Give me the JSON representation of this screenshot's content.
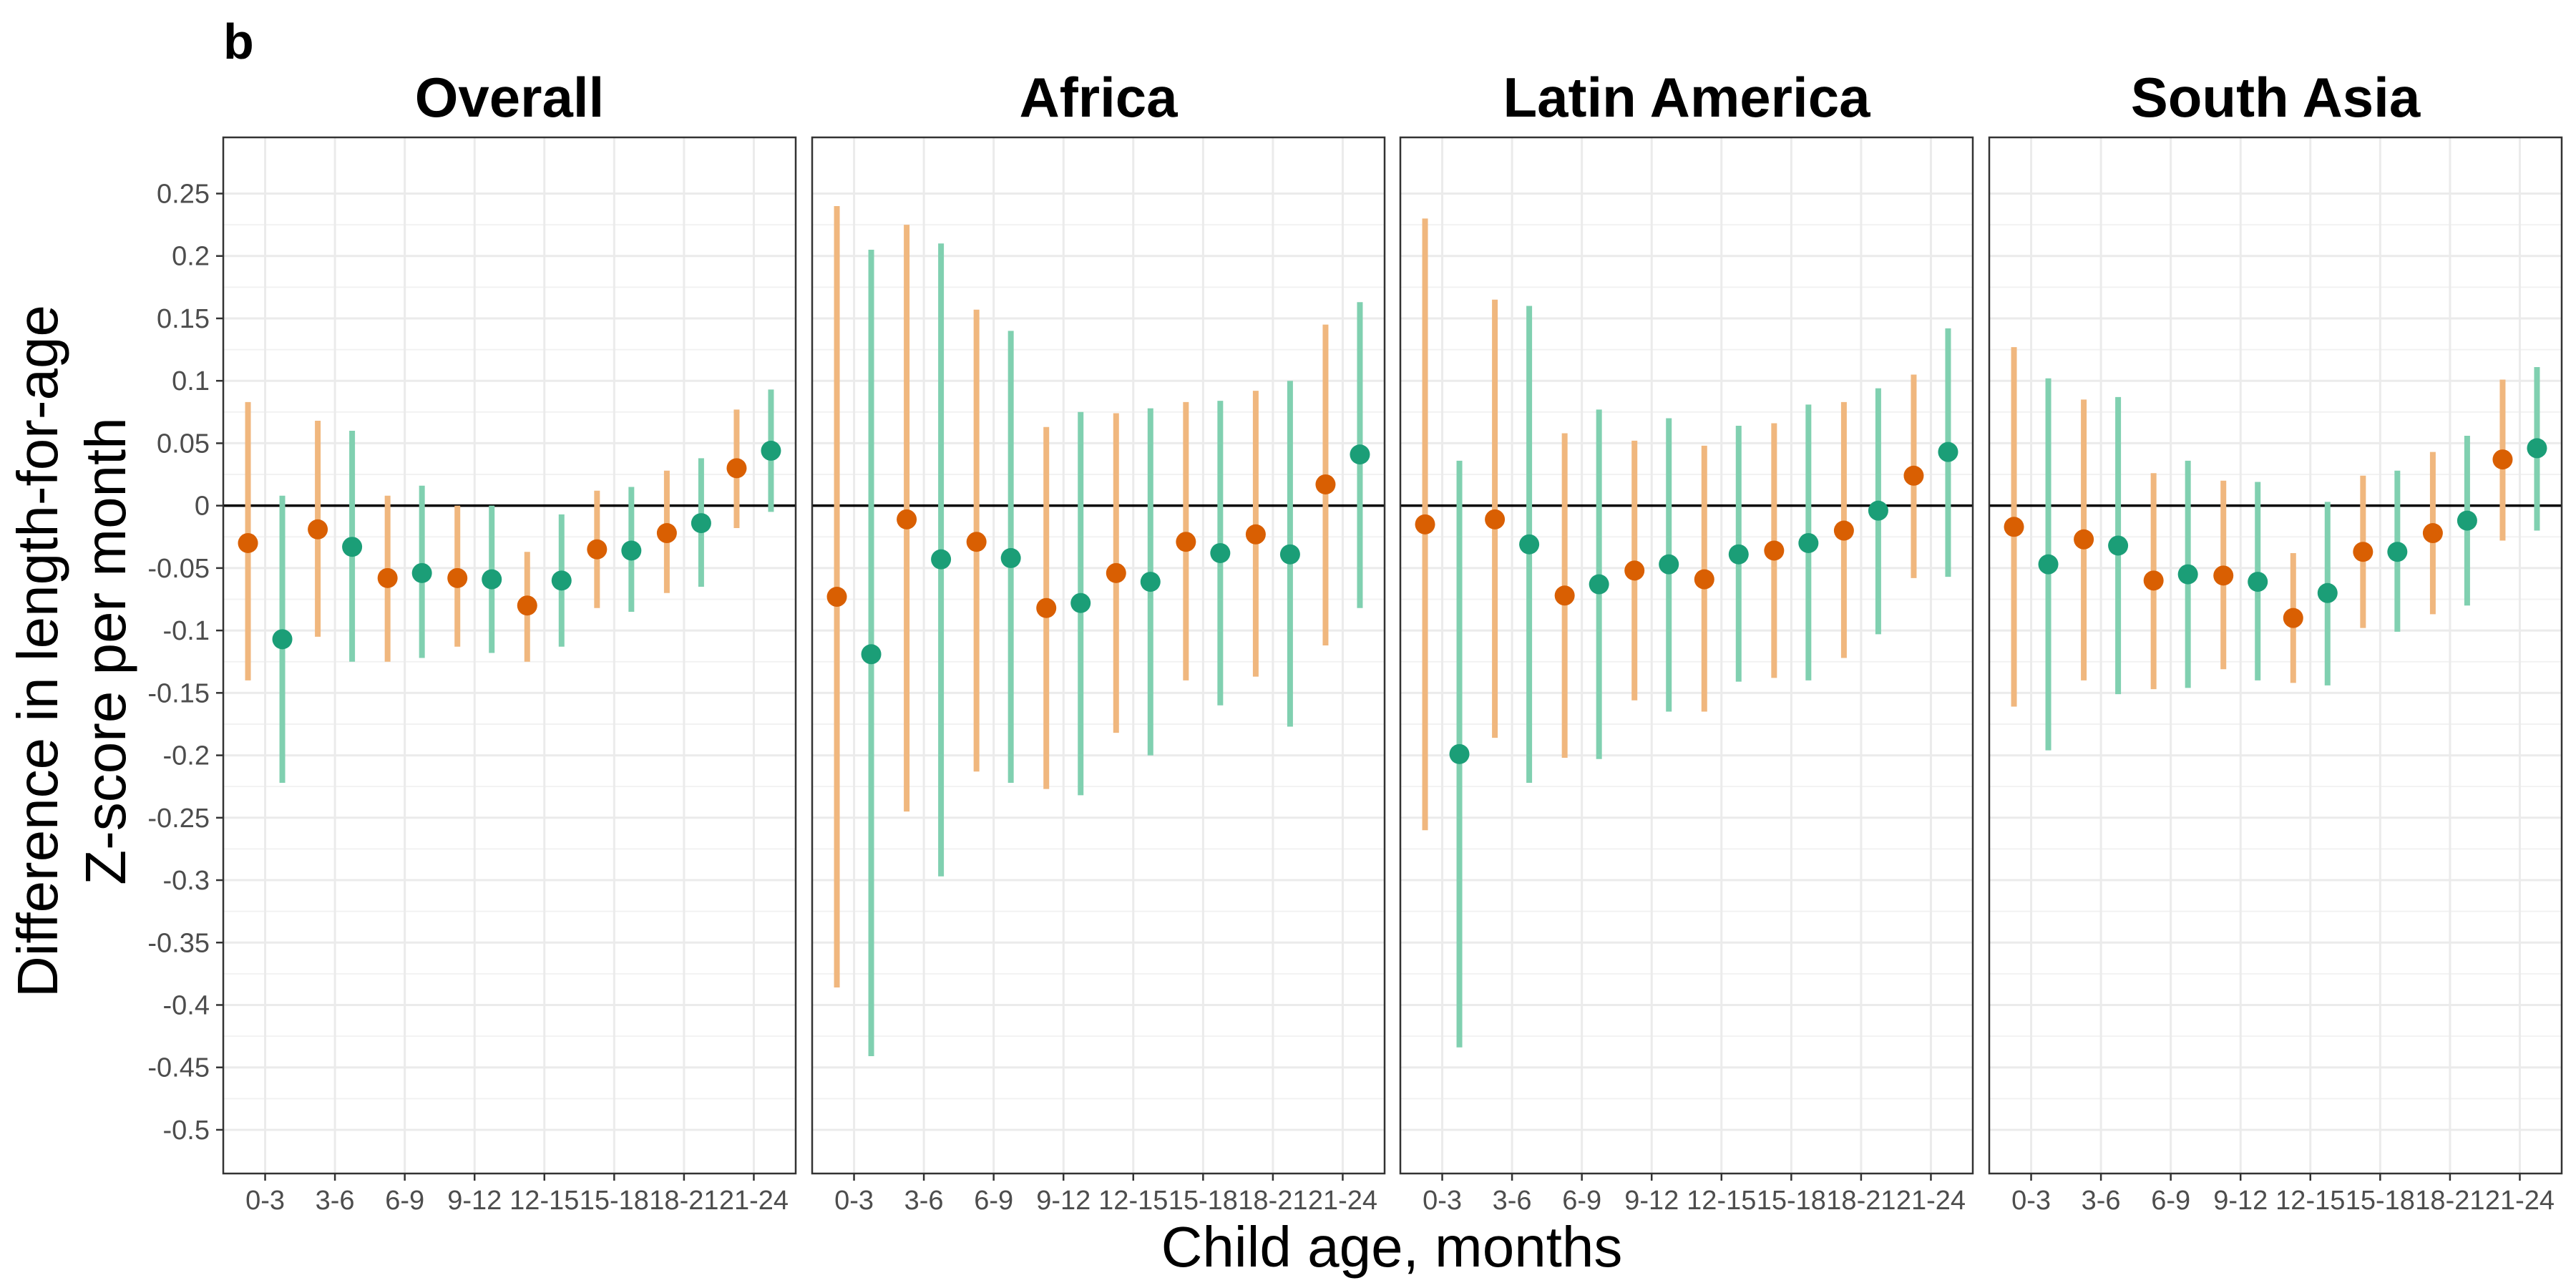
{
  "chart_data": {
    "type": "scatter",
    "panel_letter": "b",
    "xlabel": "Child age, months",
    "ylabel_lines": [
      "Difference in length-for-age",
      "Z-score per month"
    ],
    "ylim": [
      -0.535,
      0.295
    ],
    "y_ticks": [
      0.25,
      0.2,
      0.15,
      0.1,
      0.05,
      0,
      -0.05,
      -0.1,
      -0.15,
      -0.2,
      -0.25,
      -0.3,
      -0.35,
      -0.4,
      -0.45,
      -0.5
    ],
    "y_tick_labels": [
      "0.25",
      "0.2",
      "0.15",
      "0.1",
      "0.05",
      "0",
      "-0.05",
      "-0.1",
      "-0.15",
      "-0.2",
      "-0.25",
      "-0.3",
      "-0.35",
      "-0.4",
      "-0.45",
      "-0.5"
    ],
    "reference_line": 0,
    "categories": [
      "0-3",
      "3-6",
      "6-9",
      "9-12",
      "12-15",
      "15-18",
      "18-21",
      "21-24"
    ],
    "grid": true,
    "legend": "none",
    "series_colors": {
      "point": [
        "#d95f02",
        "#1b9e77"
      ],
      "interval": [
        "#f0b77e",
        "#80d0b0"
      ]
    },
    "panels": [
      {
        "title": "Overall",
        "series": [
          {
            "estimates": [
              -0.03,
              -0.019,
              -0.058,
              -0.058,
              -0.08,
              -0.035,
              -0.022,
              0.03
            ],
            "lower": [
              -0.14,
              -0.105,
              -0.125,
              -0.113,
              -0.125,
              -0.082,
              -0.07,
              -0.018
            ],
            "upper": [
              0.083,
              0.068,
              0.008,
              0.0,
              -0.037,
              0.012,
              0.028,
              0.077
            ]
          },
          {
            "estimates": [
              -0.107,
              -0.033,
              -0.054,
              -0.059,
              -0.06,
              -0.036,
              -0.014,
              0.044
            ],
            "lower": [
              -0.222,
              -0.125,
              -0.122,
              -0.118,
              -0.113,
              -0.085,
              -0.065,
              -0.005
            ],
            "upper": [
              0.008,
              0.06,
              0.016,
              0.0,
              -0.007,
              0.015,
              0.038,
              0.093
            ]
          }
        ]
      },
      {
        "title": "Africa",
        "series": [
          {
            "estimates": [
              -0.073,
              -0.011,
              -0.029,
              -0.082,
              -0.054,
              -0.029,
              -0.023,
              0.017
            ],
            "lower": [
              -0.386,
              -0.245,
              -0.213,
              -0.227,
              -0.182,
              -0.14,
              -0.137,
              -0.112
            ],
            "upper": [
              0.24,
              0.225,
              0.157,
              0.063,
              0.074,
              0.083,
              0.092,
              0.145
            ]
          },
          {
            "estimates": [
              -0.119,
              -0.043,
              -0.042,
              -0.078,
              -0.061,
              -0.038,
              -0.039,
              0.041
            ],
            "lower": [
              -0.441,
              -0.297,
              -0.222,
              -0.232,
              -0.2,
              -0.16,
              -0.177,
              -0.082
            ],
            "upper": [
              0.205,
              0.21,
              0.14,
              0.075,
              0.078,
              0.084,
              0.1,
              0.163
            ]
          }
        ]
      },
      {
        "title": "Latin America",
        "series": [
          {
            "estimates": [
              -0.015,
              -0.011,
              -0.072,
              -0.052,
              -0.059,
              -0.036,
              -0.02,
              0.024
            ],
            "lower": [
              -0.26,
              -0.186,
              -0.202,
              -0.156,
              -0.165,
              -0.138,
              -0.122,
              -0.058
            ],
            "upper": [
              0.23,
              0.165,
              0.058,
              0.052,
              0.048,
              0.066,
              0.083,
              0.105
            ]
          },
          {
            "estimates": [
              -0.199,
              -0.031,
              -0.063,
              -0.047,
              -0.039,
              -0.03,
              -0.004,
              0.043
            ],
            "lower": [
              -0.434,
              -0.222,
              -0.203,
              -0.165,
              -0.141,
              -0.14,
              -0.103,
              -0.057
            ],
            "upper": [
              0.036,
              0.16,
              0.077,
              0.07,
              0.064,
              0.081,
              0.094,
              0.142
            ]
          }
        ]
      },
      {
        "title": "South Asia",
        "series": [
          {
            "estimates": [
              -0.017,
              -0.027,
              -0.06,
              -0.056,
              -0.09,
              -0.037,
              -0.022,
              0.037
            ],
            "lower": [
              -0.161,
              -0.14,
              -0.147,
              -0.131,
              -0.142,
              -0.098,
              -0.087,
              -0.028
            ],
            "upper": [
              0.127,
              0.085,
              0.026,
              0.02,
              -0.038,
              0.024,
              0.043,
              0.101
            ]
          },
          {
            "estimates": [
              -0.047,
              -0.032,
              -0.055,
              -0.061,
              -0.07,
              -0.037,
              -0.012,
              0.046
            ],
            "lower": [
              -0.196,
              -0.151,
              -0.146,
              -0.14,
              -0.144,
              -0.101,
              -0.08,
              -0.02
            ],
            "upper": [
              0.102,
              0.087,
              0.036,
              0.019,
              0.003,
              0.028,
              0.056,
              0.111
            ]
          }
        ]
      }
    ]
  }
}
